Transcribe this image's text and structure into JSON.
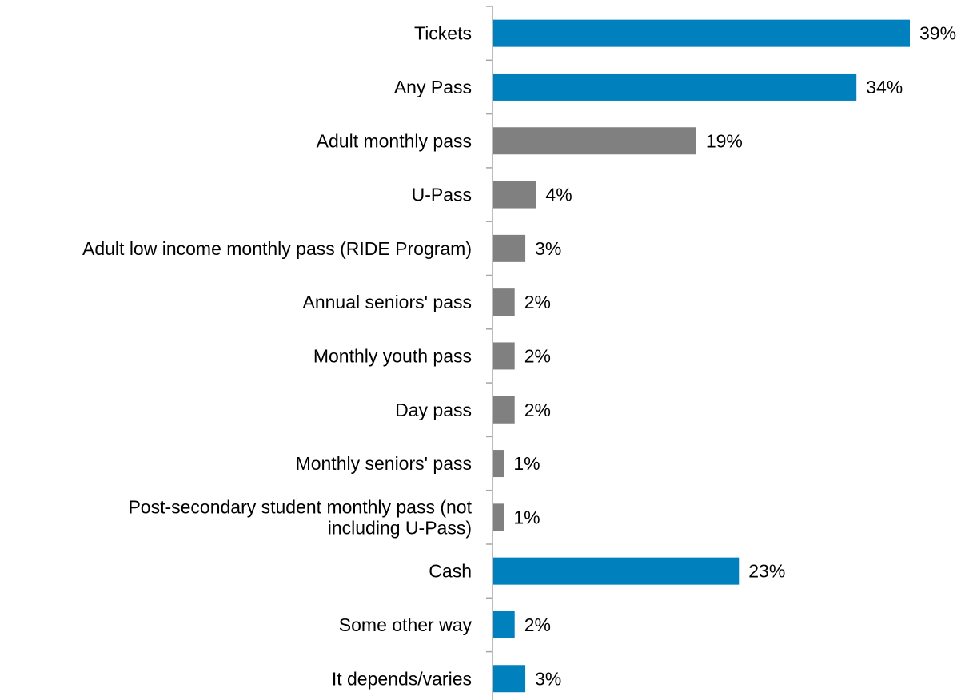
{
  "chart_data": {
    "type": "bar",
    "orientation": "horizontal",
    "categories": [
      [
        "Tickets"
      ],
      [
        "Any Pass"
      ],
      [
        "Adult monthly pass"
      ],
      [
        "U-Pass"
      ],
      [
        "Adult low income monthly pass (RIDE Program)"
      ],
      [
        "Annual seniors' pass"
      ],
      [
        "Monthly youth pass"
      ],
      [
        "Day pass"
      ],
      [
        "Monthly seniors' pass"
      ],
      [
        "Post-secondary student monthly pass (not",
        "including U-Pass)"
      ],
      [
        "Cash"
      ],
      [
        "Some other way"
      ],
      [
        "It depends/varies"
      ]
    ],
    "values": [
      39,
      34,
      19,
      4,
      3,
      2,
      2,
      2,
      1,
      1,
      23,
      2,
      3
    ],
    "value_labels": [
      "39%",
      "34%",
      "19%",
      "4%",
      "3%",
      "2%",
      "2%",
      "2%",
      "1%",
      "1%",
      "23%",
      "2%",
      "3%"
    ],
    "bar_group": [
      "summary",
      "summary",
      "pass",
      "pass",
      "pass",
      "pass",
      "pass",
      "pass",
      "pass",
      "pass",
      "summary",
      "summary",
      "summary"
    ],
    "colors": {
      "summary": "#0081bd",
      "pass": "#808080",
      "axis": "#a6a6a6"
    },
    "title": "",
    "xlabel": "",
    "ylabel": "",
    "xlim": [
      0,
      39
    ],
    "grid": false,
    "legend": "none"
  }
}
